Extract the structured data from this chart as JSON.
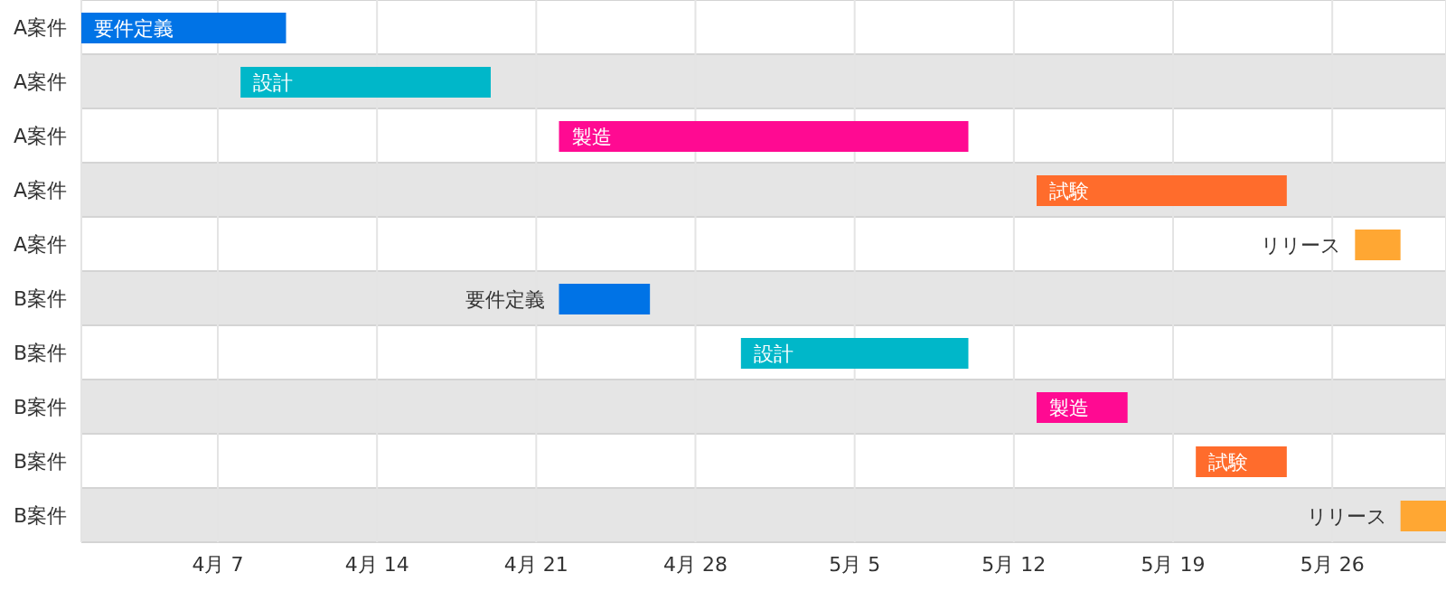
{
  "chart_data": {
    "type": "bar",
    "orientation": "horizontal",
    "categories": [
      "A案件",
      "A案件",
      "A案件",
      "A案件",
      "A案件",
      "B案件",
      "B案件",
      "B案件",
      "B案件",
      "B案件"
    ],
    "base": [
      11413,
      11420,
      11434,
      11455,
      11469,
      11434,
      11442,
      11455,
      11462,
      11471
    ],
    "values": [
      9,
      11,
      18,
      11,
      2,
      4,
      10,
      4,
      4,
      2
    ],
    "colors": [
      "#0073e6",
      "#00b7c9",
      "#ff0a92",
      "#ff6c2c",
      "#ffa733",
      "#0073e6",
      "#00b7c9",
      "#ff0a92",
      "#ff6c2c",
      "#ffa733"
    ],
    "value_labels": [
      "要件定義",
      "設計",
      "製造",
      "試験",
      "リリース",
      "要件定義",
      "設計",
      "製造",
      "試験",
      "リリース"
    ],
    "xlim": [
      "--04-01",
      "--05-31"
    ],
    "xticks": [
      {
        "value": "--04-07",
        "label": "4月 7"
      },
      {
        "value": "--04-14",
        "label": "4月 14"
      },
      {
        "value": "--04-21",
        "label": "4月 21"
      },
      {
        "value": "--04-28",
        "label": "4月 28"
      },
      {
        "value": "--05-05",
        "label": "5月 5"
      },
      {
        "value": "--05-12",
        "label": "5月 12"
      },
      {
        "value": "--05-19",
        "label": "5月 19"
      },
      {
        "value": "--05-26",
        "label": "5月 26"
      }
    ],
    "grid": "x"
  }
}
